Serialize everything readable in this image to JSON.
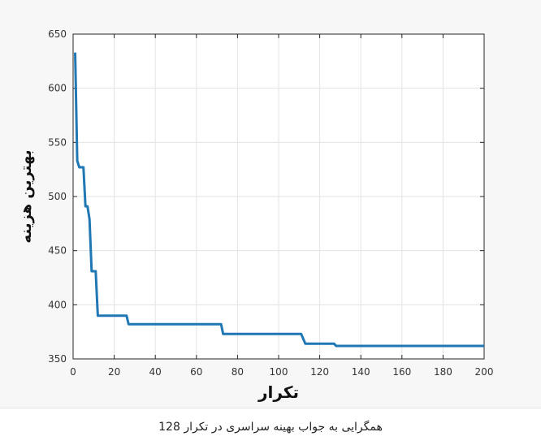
{
  "chart_data": {
    "type": "line",
    "title": "",
    "xlabel": "تکرار",
    "ylabel": "بهترین هزینه",
    "xlim": [
      0,
      200
    ],
    "ylim": [
      350,
      650
    ],
    "xticks": [
      0,
      20,
      40,
      60,
      80,
      100,
      120,
      140,
      160,
      180,
      200
    ],
    "yticks": [
      350,
      400,
      450,
      500,
      550,
      600,
      650
    ],
    "grid": true,
    "series": [
      {
        "color": "#1f77b4",
        "x": [
          1,
          2,
          3,
          4,
          5,
          6,
          7,
          8,
          9,
          10,
          11,
          12,
          26,
          27,
          72,
          73,
          111,
          113,
          127,
          128,
          200
        ],
        "y": [
          633,
          533,
          527,
          527,
          527,
          491,
          491,
          479,
          431,
          431,
          431,
          390,
          390,
          382,
          382,
          373,
          373,
          364,
          364,
          362,
          362
        ]
      }
    ]
  },
  "caption": "همگرایی به جواب بهینه سراسری در تکرار 128"
}
